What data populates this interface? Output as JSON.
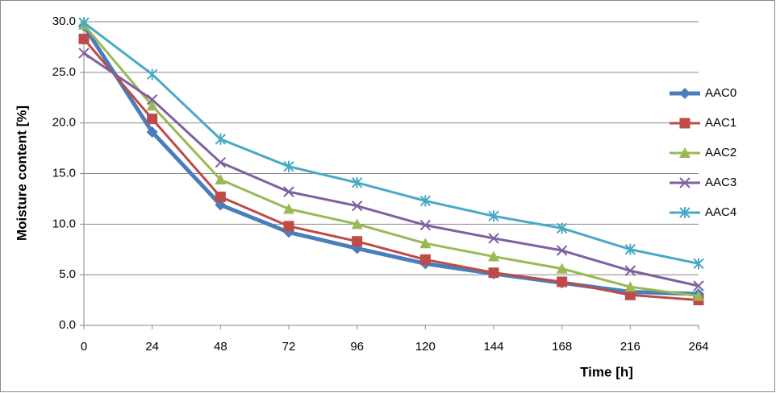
{
  "chart_data": {
    "type": "line",
    "x_label": "Time  [h]",
    "y_label": "Moisture content [%]",
    "categories": [
      "0",
      "24",
      "48",
      "72",
      "96",
      "120",
      "144",
      "168",
      "216",
      "264"
    ],
    "ylim": [
      0,
      30
    ],
    "yticks": [
      {
        "value": 0,
        "label": "0.0"
      },
      {
        "value": 5,
        "label": "5.0"
      },
      {
        "value": 10,
        "label": "10.0"
      },
      {
        "value": 15,
        "label": "15.0"
      },
      {
        "value": 20,
        "label": "20.0"
      },
      {
        "value": 25,
        "label": "25.0"
      },
      {
        "value": 30,
        "label": "30.0"
      }
    ],
    "grid": true,
    "legend": "right",
    "series": [
      {
        "name": "AAC0",
        "color": "#4a7ebb",
        "marker": "diamond",
        "line_width": 5,
        "values": [
          29.6,
          19.1,
          11.9,
          9.2,
          7.6,
          6.1,
          5.1,
          4.2,
          3.3,
          3.1
        ]
      },
      {
        "name": "AAC1",
        "color": "#be4b48",
        "marker": "square",
        "line_width": 3,
        "values": [
          28.3,
          20.4,
          12.7,
          9.8,
          8.3,
          6.5,
          5.2,
          4.3,
          3.0,
          2.5
        ]
      },
      {
        "name": "AAC2",
        "color": "#98b954",
        "marker": "triangle",
        "line_width": 3,
        "values": [
          29.7,
          21.7,
          14.4,
          11.5,
          10.0,
          8.1,
          6.8,
          5.6,
          3.8,
          2.9
        ]
      },
      {
        "name": "AAC3",
        "color": "#7d60a0",
        "marker": "x",
        "line_width": 3,
        "values": [
          26.9,
          22.3,
          16.1,
          13.2,
          11.8,
          9.9,
          8.6,
          7.4,
          5.4,
          3.9
        ]
      },
      {
        "name": "AAC4",
        "color": "#46aac5",
        "marker": "star",
        "line_width": 3,
        "values": [
          29.9,
          24.8,
          18.4,
          15.7,
          14.1,
          12.3,
          10.8,
          9.6,
          7.5,
          6.1
        ]
      }
    ]
  }
}
